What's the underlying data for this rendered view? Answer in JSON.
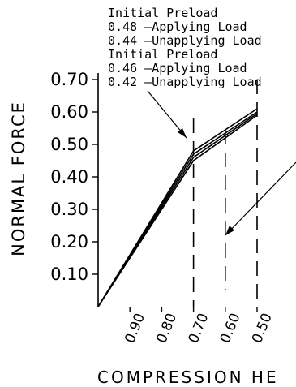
{
  "chart_data": {
    "type": "line",
    "xlabel": "COMPRESSION HE",
    "ylabel": "NORMAL FORCE",
    "x_tick_labels": [
      "0.90",
      "0.80",
      "0.70",
      "0.60",
      "0.50"
    ],
    "y_tick_labels": [
      "0.10",
      "0.20",
      "0.30",
      "0.40",
      "0.50",
      "0.60",
      "0.70"
    ],
    "xlim": [
      1.0,
      0.5
    ],
    "ylim": [
      0,
      0.7
    ],
    "series": [
      {
        "x": [
          1.0,
          0.7,
          0.5
        ],
        "y": [
          0,
          0.48,
          0.61
        ]
      },
      {
        "x": [
          1.0,
          0.7,
          0.5
        ],
        "y": [
          0,
          0.47,
          0.6
        ]
      },
      {
        "x": [
          1.0,
          0.7,
          0.5
        ],
        "y": [
          0,
          0.46,
          0.595
        ]
      },
      {
        "x": [
          1.0,
          0.7,
          0.5
        ],
        "y": [
          0,
          0.45,
          0.59
        ]
      }
    ],
    "reference_lines_x": [
      0.7,
      0.6,
      0.5
    ],
    "annotations": [
      {
        "lines": [
          "Initial  Preload",
          "0.48  –Applying  Load",
          "0.44  –Unapplying  Load"
        ]
      },
      {
        "lines": [
          "Initial  Preload",
          "0.46  –Applying  Load",
          "0.42  –Unapplying  Load"
        ]
      }
    ]
  }
}
